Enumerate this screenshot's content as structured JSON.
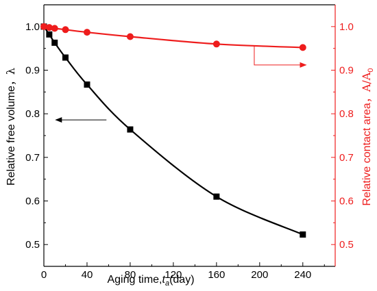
{
  "chart_data": {
    "type": "line",
    "x": [
      0,
      5,
      10,
      20,
      40,
      80,
      160,
      240
    ],
    "x_tick_labels": [
      "0",
      "40",
      "80",
      "120",
      "160",
      "200",
      "240"
    ],
    "xlim": [
      0,
      270
    ],
    "xlabel_main": "Aging time,",
    "xlabel_var": "t",
    "xlabel_sub": "a",
    "xlabel_unit": "(day)",
    "y_left": {
      "label": "Relative free volume，",
      "symbol": "λ",
      "ylim": [
        0.45,
        1.05
      ],
      "tick_labels": [
        "0.5",
        "0.6",
        "0.7",
        "0.8",
        "0.9",
        "1.0"
      ],
      "color": "#000000"
    },
    "y_right": {
      "label": "Relative contact area，",
      "symbol": "A/A",
      "subscript": "0",
      "ylim": [
        0.45,
        1.05
      ],
      "tick_labels": [
        "0.5",
        "0.6",
        "0.7",
        "0.8",
        "0.9",
        "1.0"
      ],
      "color": "#ee1c1c"
    },
    "series": [
      {
        "axis": "left",
        "marker": "square",
        "color": "#000000",
        "values": [
          1.0,
          0.982,
          0.963,
          0.929,
          0.867,
          0.764,
          0.61,
          0.523
        ]
      },
      {
        "axis": "right",
        "marker": "circle",
        "color": "#ee1c1c",
        "values": [
          1.0,
          0.998,
          0.996,
          0.993,
          0.987,
          0.977,
          0.96,
          0.952
        ]
      }
    ],
    "annotations": [
      {
        "type": "arrow",
        "target": "left-axis",
        "series": 0
      },
      {
        "type": "arrow",
        "target": "right-axis",
        "series": 1
      }
    ],
    "grid": false
  }
}
